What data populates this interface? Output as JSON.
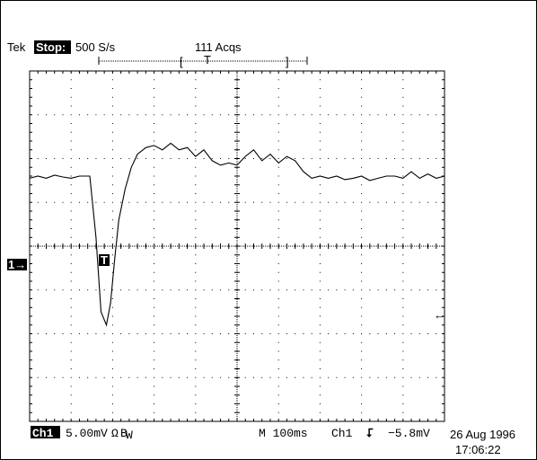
{
  "header": {
    "brand": "Tek",
    "state": "Stop:",
    "rate": "500 S/s",
    "acqs": "111 Acqs",
    "bracket_left": "[",
    "trigger_mark": "T",
    "bracket_right": "]"
  },
  "markers": {
    "channel_ref": "1→",
    "trigger_point": "T",
    "trigger_level_arrow": "←"
  },
  "footer": {
    "channel": "Ch1",
    "scale": "5.00mV",
    "coupling": "Ω",
    "bw": "B",
    "bw_sub": "W",
    "timebase": "M 100ms",
    "trigger_source": "Ch1",
    "trigger_slope": "⮦",
    "trigger_level": "−5.8mV",
    "date": "26 Aug 1996",
    "time": "17:06:22"
  },
  "chart_data": {
    "type": "line",
    "grid": true,
    "divisions_x": 10,
    "divisions_y": 8,
    "x_unit": "div (100ms/div)",
    "y_unit": "div (5.00mV/div, relative to ch1 ground)",
    "xlim": [
      0,
      10
    ],
    "ylim": [
      -4,
      4
    ],
    "series": [
      {
        "x": [
          0,
          0.2,
          0.4,
          0.6,
          0.8,
          1.0,
          1.2,
          1.45,
          1.6,
          1.72,
          1.85,
          1.95,
          2.05,
          2.15,
          2.3,
          2.45,
          2.6,
          2.8,
          3.0,
          3.2,
          3.4,
          3.6,
          3.8,
          4.0,
          4.2,
          4.4,
          4.6,
          4.8,
          5.0,
          5.2,
          5.4,
          5.6,
          5.8,
          6.0,
          6.2,
          6.4,
          6.6,
          6.8,
          7.0,
          7.2,
          7.4,
          7.6,
          7.8,
          8.0,
          8.2,
          8.4,
          8.6,
          8.8,
          9.0,
          9.2,
          9.4,
          9.6,
          9.8,
          10.0
        ],
        "y": [
          1.55,
          1.6,
          1.55,
          1.62,
          1.58,
          1.55,
          1.6,
          1.6,
          0.2,
          -1.5,
          -1.8,
          -1.3,
          -0.3,
          0.6,
          1.3,
          1.8,
          2.1,
          2.25,
          2.3,
          2.2,
          2.35,
          2.2,
          2.25,
          2.05,
          2.2,
          1.95,
          1.85,
          1.9,
          1.85,
          2.05,
          2.2,
          1.95,
          2.1,
          1.9,
          2.05,
          1.95,
          1.7,
          1.55,
          1.6,
          1.55,
          1.6,
          1.52,
          1.55,
          1.6,
          1.5,
          1.55,
          1.6,
          1.6,
          1.55,
          1.7,
          1.55,
          1.65,
          1.55,
          1.6
        ]
      }
    ]
  }
}
